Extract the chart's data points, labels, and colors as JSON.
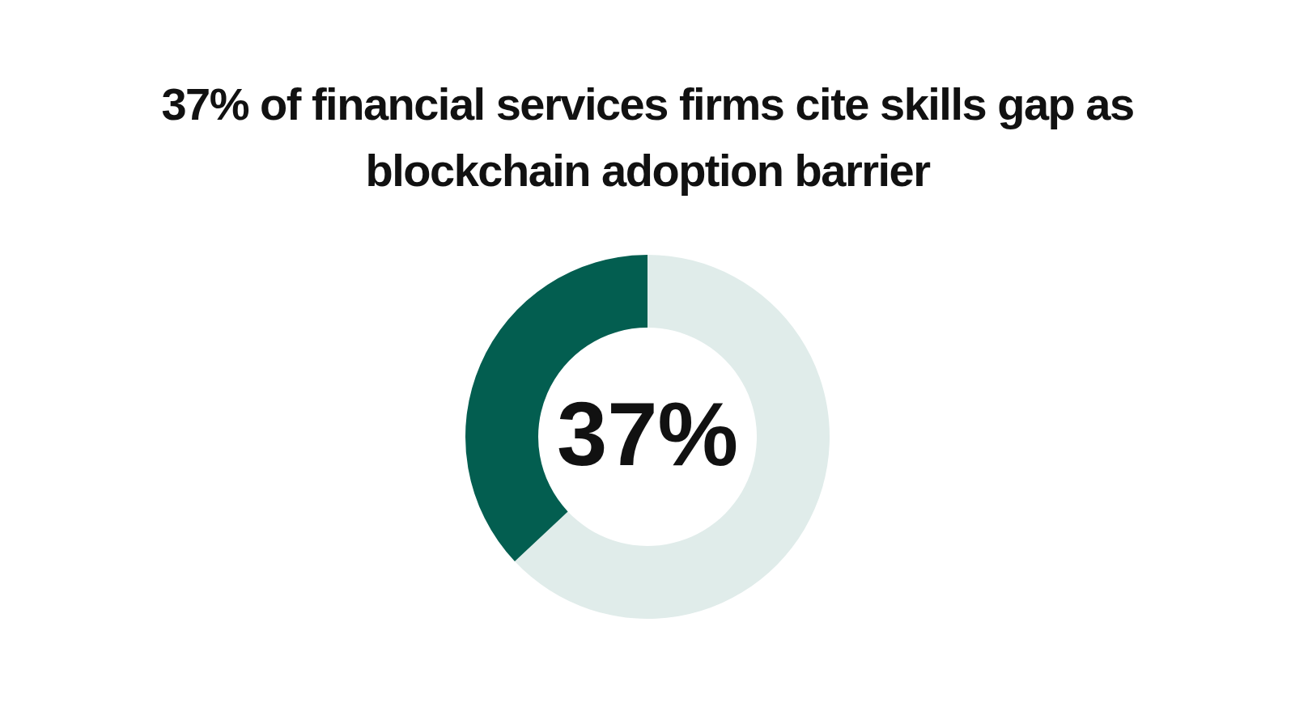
{
  "chart_data": {
    "type": "donut",
    "title": "37% of financial services firms cite skills gap as blockchain adoption barrier",
    "categories": [
      null,
      null
    ],
    "values": [
      63,
      37
    ],
    "colors": [
      "#e0ecea",
      "#035e50"
    ],
    "value_labels": [
      null,
      "37%"
    ],
    "legend": false
  }
}
